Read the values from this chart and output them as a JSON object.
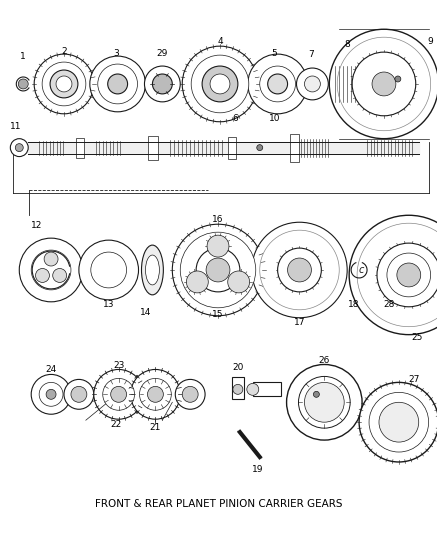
{
  "title": "FRONT & REAR PLANET PINION CARRIER GEARS",
  "bg_color": "#ffffff",
  "line_color": "#1a1a1a",
  "title_fontsize": 7.5,
  "figsize": [
    4.38,
    5.33
  ],
  "dpi": 100
}
